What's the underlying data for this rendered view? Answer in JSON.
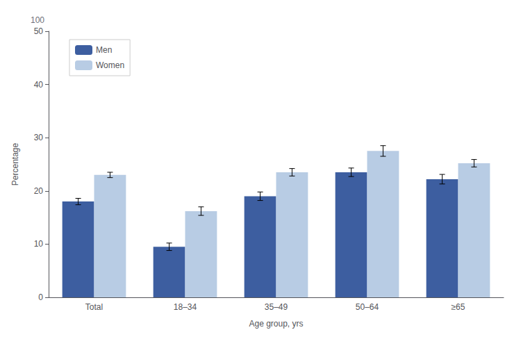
{
  "chart_data": {
    "type": "bar",
    "categories": [
      "Total",
      "18–34",
      "35–49",
      "50–64",
      "≥65"
    ],
    "series": [
      {
        "name": "Men",
        "color": "#3d5ea0",
        "values": [
          18.0,
          9.5,
          19.0,
          23.5,
          22.2
        ],
        "errors": [
          0.6,
          0.7,
          0.8,
          0.8,
          0.9
        ]
      },
      {
        "name": "Women",
        "color": "#b8cce4",
        "values": [
          23.0,
          16.2,
          23.5,
          27.5,
          25.2
        ],
        "errors": [
          0.5,
          0.8,
          0.7,
          1.0,
          0.7
        ]
      }
    ],
    "xlabel": "Age group, yrs",
    "ylabel": "Percentage",
    "ylim": [
      0,
      50
    ],
    "yticks": [
      0,
      10,
      20,
      30,
      40,
      50
    ],
    "grid": false,
    "legend": "upper left",
    "annotations": [
      "100"
    ]
  }
}
